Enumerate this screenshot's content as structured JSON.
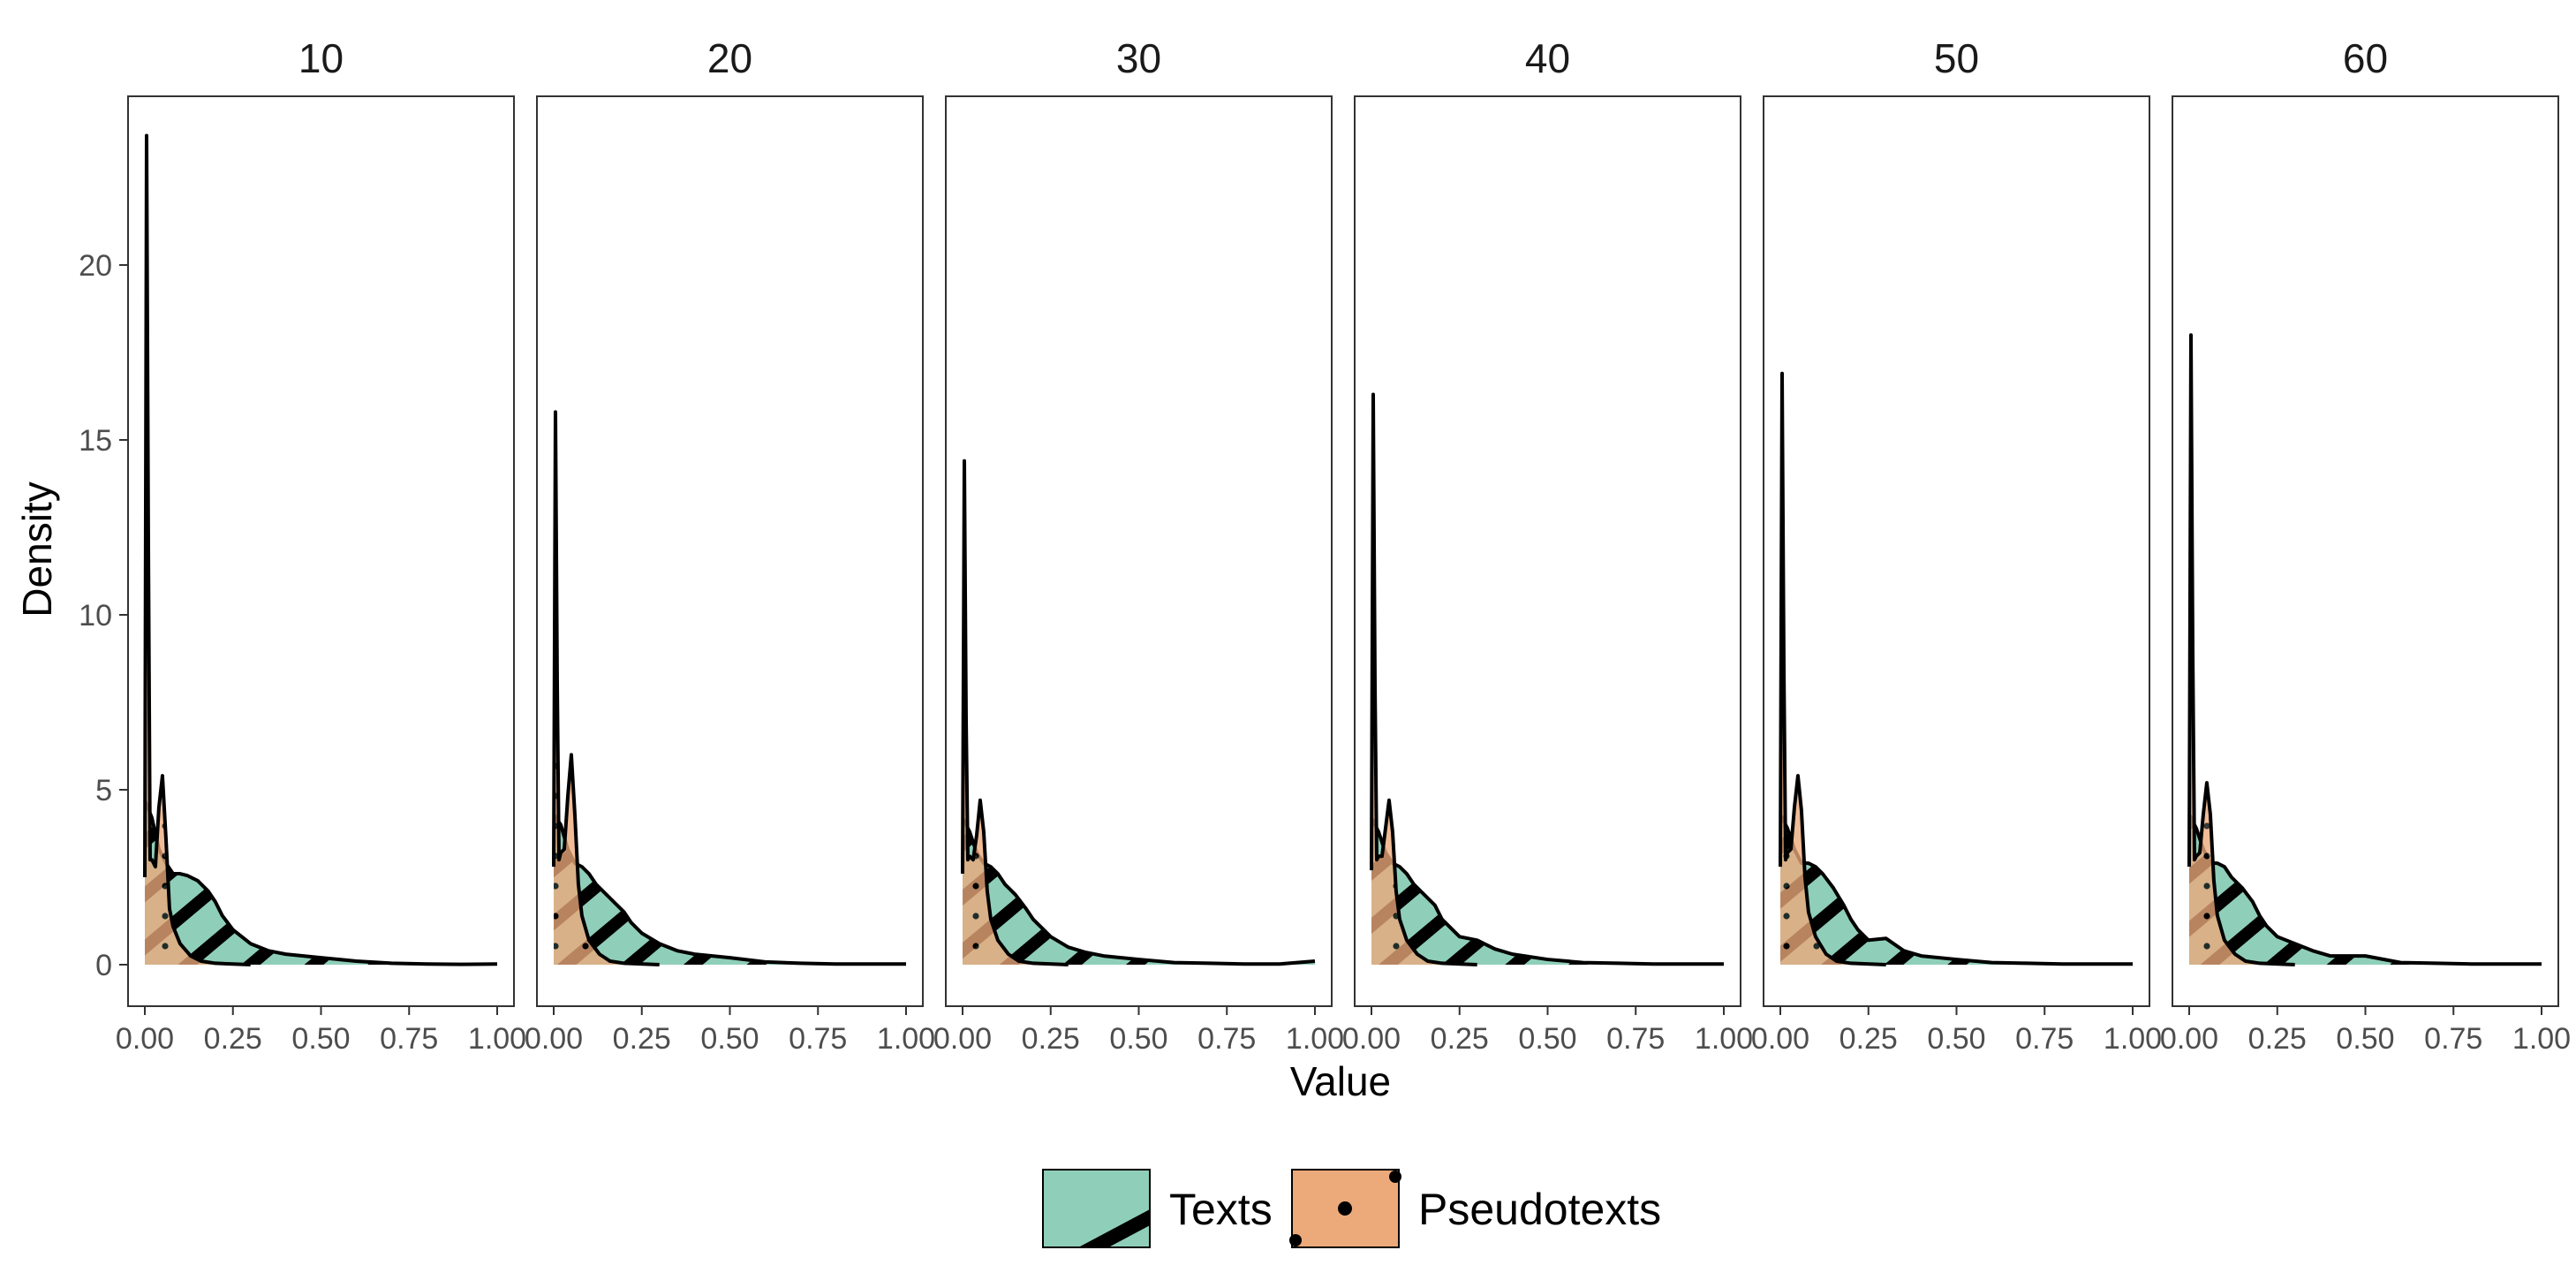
{
  "chart_data": {
    "type": "area",
    "xlabel": "Value",
    "ylabel": "Density",
    "xlim": [
      0,
      1
    ],
    "ylim": [
      0,
      25
    ],
    "x_ticks": [
      0,
      0.25,
      0.5,
      0.75,
      1
    ],
    "x_tick_labels": [
      "0.00",
      "0.25",
      "0.50",
      "0.75",
      "1.00"
    ],
    "y_ticks": [
      0,
      5,
      10,
      15,
      20
    ],
    "y_tick_labels": [
      "0",
      "5",
      "10",
      "15",
      "20"
    ],
    "grid": false,
    "legend_position": "bottom",
    "legend": [
      {
        "label": "Texts",
        "color": "#8fcfb9",
        "pattern": "stripe"
      },
      {
        "label": "Pseudotexts",
        "color": "#eca97a",
        "pattern": "dots"
      }
    ],
    "panels": [
      {
        "title": "10",
        "series": [
          {
            "name": "Pseudotexts",
            "x": [
              0,
              0.005,
              0.01,
              0.015,
              0.02,
              0.03,
              0.04,
              0.05,
              0.06,
              0.07,
              0.08,
              0.1,
              0.13,
              0.16,
              0.2,
              0.3
            ],
            "y": [
              2.5,
              23.7,
              12,
              3,
              3,
              2.8,
              4.5,
              5.4,
              3.6,
              1.6,
              1.1,
              0.6,
              0.25,
              0.1,
              0.04,
              0
            ]
          },
          {
            "name": "Texts",
            "x": [
              0,
              0.02,
              0.04,
              0.06,
              0.08,
              0.1,
              0.12,
              0.15,
              0.18,
              0.2,
              0.22,
              0.25,
              0.3,
              0.35,
              0.4,
              0.5,
              0.6,
              0.7,
              0.8,
              0.9,
              1
            ],
            "y": [
              4.7,
              4.2,
              3.3,
              2.9,
              2.6,
              2.6,
              2.55,
              2.4,
              2.1,
              1.8,
              1.4,
              1,
              0.6,
              0.4,
              0.3,
              0.2,
              0.1,
              0.04,
              0.02,
              0.01,
              0.02
            ]
          }
        ]
      },
      {
        "title": "20",
        "series": [
          {
            "name": "Pseudotexts",
            "x": [
              0,
              0.005,
              0.01,
              0.015,
              0.02,
              0.03,
              0.04,
              0.05,
              0.06,
              0.07,
              0.08,
              0.1,
              0.13,
              0.16,
              0.2,
              0.3
            ],
            "y": [
              2.8,
              15.8,
              8,
              3,
              3.2,
              3.3,
              4.8,
              6,
              4.3,
              2.3,
              1.4,
              0.7,
              0.3,
              0.1,
              0.04,
              0
            ]
          },
          {
            "name": "Texts",
            "x": [
              0,
              0.02,
              0.04,
              0.06,
              0.08,
              0.1,
              0.12,
              0.15,
              0.18,
              0.2,
              0.22,
              0.25,
              0.3,
              0.35,
              0.4,
              0.5,
              0.6,
              0.7,
              0.8,
              0.9,
              1
            ],
            "y": [
              4.3,
              4,
              3.3,
              2.9,
              2.8,
              2.6,
              2.3,
              2,
              1.7,
              1.5,
              1.2,
              0.9,
              0.6,
              0.4,
              0.3,
              0.2,
              0.08,
              0.04,
              0.02,
              0.02,
              0.02
            ]
          }
        ]
      },
      {
        "title": "30",
        "series": [
          {
            "name": "Pseudotexts",
            "x": [
              0,
              0.005,
              0.01,
              0.015,
              0.02,
              0.03,
              0.04,
              0.05,
              0.06,
              0.07,
              0.08,
              0.1,
              0.13,
              0.16,
              0.2,
              0.3
            ],
            "y": [
              2.6,
              14.4,
              7,
              3,
              3.1,
              3,
              3.7,
              4.7,
              3.8,
              2.1,
              1.3,
              0.7,
              0.3,
              0.1,
              0.04,
              0
            ]
          },
          {
            "name": "Texts",
            "x": [
              0,
              0.02,
              0.04,
              0.06,
              0.08,
              0.1,
              0.12,
              0.15,
              0.18,
              0.2,
              0.22,
              0.25,
              0.3,
              0.35,
              0.4,
              0.5,
              0.6,
              0.7,
              0.8,
              0.9,
              1
            ],
            "y": [
              4.2,
              3.8,
              3.2,
              2.9,
              2.8,
              2.6,
              2.3,
              2,
              1.6,
              1.3,
              1.1,
              0.8,
              0.5,
              0.35,
              0.25,
              0.15,
              0.06,
              0.04,
              0.02,
              0.02,
              0.1
            ]
          }
        ]
      },
      {
        "title": "40",
        "series": [
          {
            "name": "Pseudotexts",
            "x": [
              0,
              0.005,
              0.01,
              0.015,
              0.02,
              0.03,
              0.04,
              0.05,
              0.06,
              0.07,
              0.08,
              0.1,
              0.13,
              0.16,
              0.2,
              0.3
            ],
            "y": [
              2.7,
              16.3,
              8,
              3,
              3.1,
              3.1,
              3.9,
              4.7,
              3.8,
              2.1,
              1.3,
              0.7,
              0.3,
              0.1,
              0.04,
              0
            ]
          },
          {
            "name": "Texts",
            "x": [
              0,
              0.02,
              0.04,
              0.06,
              0.08,
              0.1,
              0.12,
              0.15,
              0.18,
              0.2,
              0.22,
              0.25,
              0.3,
              0.35,
              0.4,
              0.5,
              0.6,
              0.7,
              0.8,
              0.9,
              1
            ],
            "y": [
              4.2,
              3.8,
              3.2,
              2.9,
              2.8,
              2.6,
              2.3,
              2,
              1.7,
              1.3,
              1.1,
              0.8,
              0.7,
              0.45,
              0.3,
              0.15,
              0.06,
              0.04,
              0.02,
              0.02,
              0.02
            ]
          }
        ]
      },
      {
        "title": "50",
        "series": [
          {
            "name": "Pseudotexts",
            "x": [
              0,
              0.005,
              0.01,
              0.015,
              0.02,
              0.03,
              0.04,
              0.05,
              0.06,
              0.07,
              0.08,
              0.1,
              0.13,
              0.16,
              0.2,
              0.3
            ],
            "y": [
              2.8,
              16.9,
              8.5,
              3,
              3.2,
              3.3,
              4.5,
              5.4,
              4.4,
              2.5,
              1.5,
              0.8,
              0.3,
              0.1,
              0.04,
              0
            ]
          },
          {
            "name": "Texts",
            "x": [
              0,
              0.02,
              0.04,
              0.06,
              0.08,
              0.1,
              0.12,
              0.15,
              0.18,
              0.2,
              0.22,
              0.25,
              0.3,
              0.35,
              0.4,
              0.5,
              0.6,
              0.7,
              0.8,
              0.9,
              1
            ],
            "y": [
              4.3,
              3.9,
              3.3,
              2.9,
              2.9,
              2.8,
              2.6,
              2.2,
              1.7,
              1.3,
              1,
              0.7,
              0.75,
              0.4,
              0.25,
              0.15,
              0.06,
              0.04,
              0.02,
              0.02,
              0.02
            ]
          }
        ]
      },
      {
        "title": "60",
        "series": [
          {
            "name": "Pseudotexts",
            "x": [
              0,
              0.005,
              0.01,
              0.015,
              0.02,
              0.03,
              0.04,
              0.05,
              0.06,
              0.07,
              0.08,
              0.1,
              0.13,
              0.16,
              0.2,
              0.3
            ],
            "y": [
              2.8,
              18,
              9,
              3,
              3.1,
              3.2,
              4.3,
              5.2,
              4.3,
              2.4,
              1.4,
              0.7,
              0.3,
              0.1,
              0.04,
              0
            ]
          },
          {
            "name": "Texts",
            "x": [
              0,
              0.02,
              0.04,
              0.06,
              0.08,
              0.1,
              0.12,
              0.15,
              0.18,
              0.2,
              0.22,
              0.25,
              0.3,
              0.35,
              0.4,
              0.5,
              0.6,
              0.7,
              0.8,
              0.9,
              1
            ],
            "y": [
              4.3,
              3.9,
              3.3,
              2.9,
              2.9,
              2.8,
              2.5,
              2.2,
              1.8,
              1.4,
              1.1,
              0.8,
              0.6,
              0.4,
              0.25,
              0.25,
              0.06,
              0.04,
              0.02,
              0.02,
              0.02
            ]
          }
        ]
      }
    ]
  }
}
